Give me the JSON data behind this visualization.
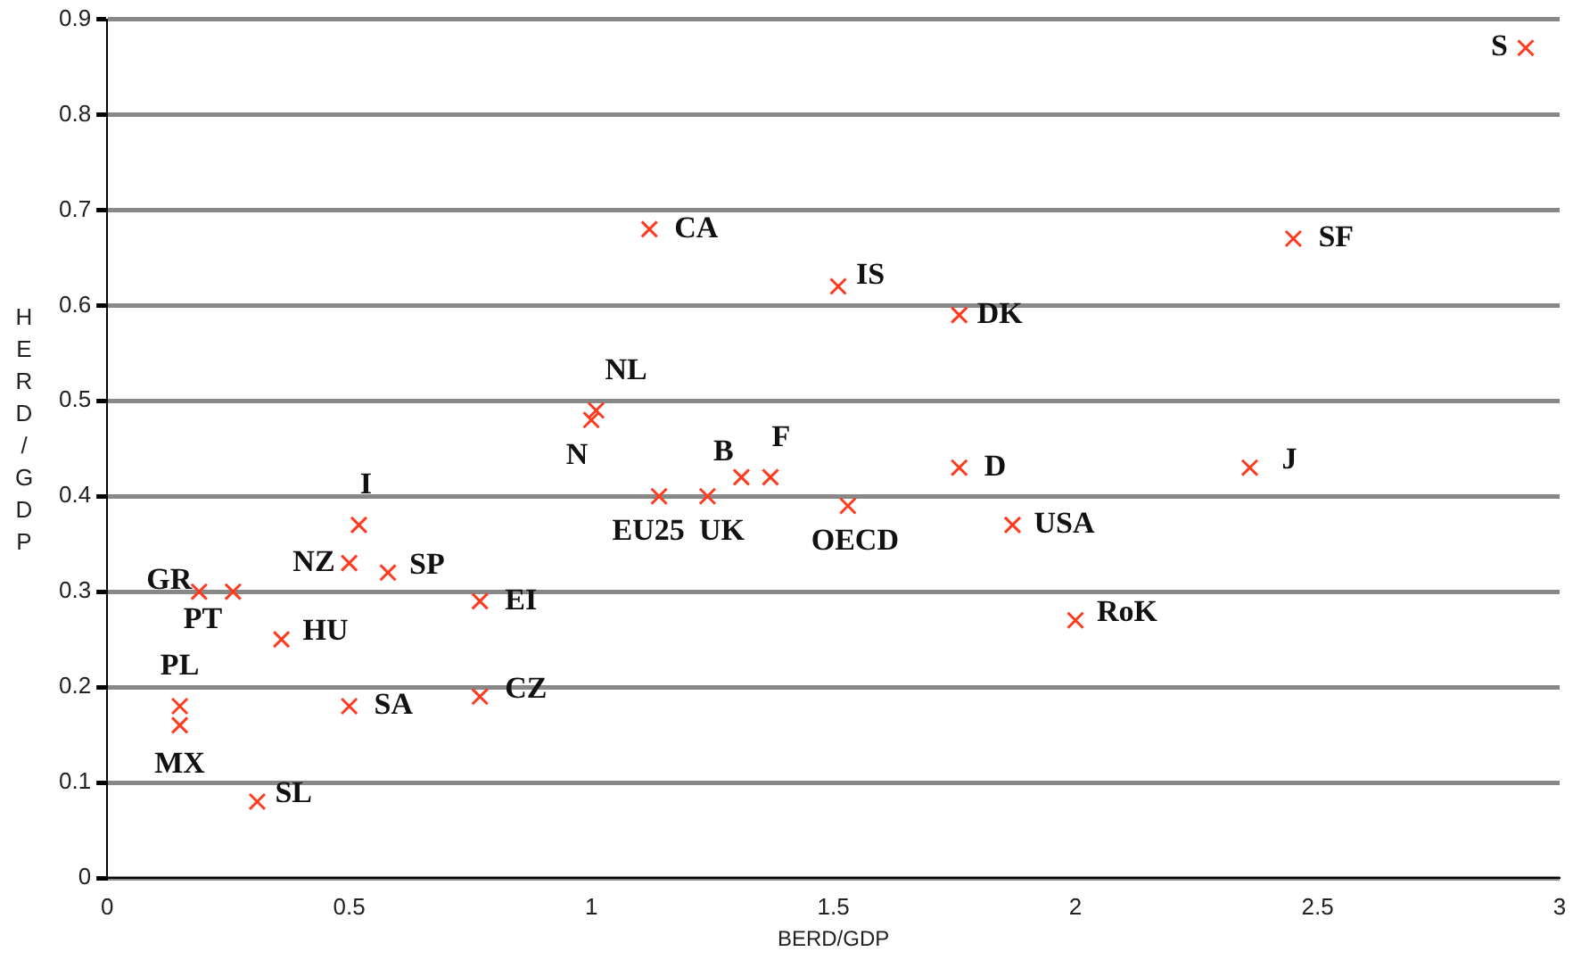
{
  "chart_data": {
    "type": "scatter",
    "xlabel": "BERD/GDP",
    "ylabel": "HERD/GDP",
    "x": [
      2.93,
      2.45,
      1.12,
      1.51,
      1.76,
      1.01,
      1.0,
      1.31,
      1.37,
      1.14,
      1.24,
      1.53,
      1.76,
      2.36,
      1.87,
      2.0,
      0.52,
      0.5,
      0.58,
      0.19,
      0.26,
      0.36,
      0.77,
      0.77,
      0.5,
      0.15,
      0.15,
      0.31
    ],
    "values": [
      0.87,
      0.67,
      0.68,
      0.62,
      0.59,
      0.49,
      0.48,
      0.42,
      0.42,
      0.4,
      0.4,
      0.39,
      0.43,
      0.43,
      0.37,
      0.27,
      0.37,
      0.33,
      0.32,
      0.3,
      0.3,
      0.25,
      0.29,
      0.19,
      0.18,
      0.18,
      0.16,
      0.08
    ],
    "color": "#ff3b1f",
    "marker": "cross",
    "xlim": [
      0,
      3
    ],
    "xticks": [
      0,
      0.5,
      1,
      1.5,
      2,
      2.5,
      3
    ],
    "ylim": [
      0,
      0.9
    ],
    "yticks": [
      0,
      0.1,
      0.2,
      0.3,
      0.4,
      0.5,
      0.6,
      0.7,
      0.8,
      0.9
    ],
    "grid": "y",
    "annotations": [
      {
        "text": "S",
        "x": 2.93,
        "y": 0.87
      },
      {
        "text": "SF",
        "x": 2.45,
        "y": 0.67
      },
      {
        "text": "CA",
        "x": 1.12,
        "y": 0.68
      },
      {
        "text": "IS",
        "x": 1.51,
        "y": 0.62
      },
      {
        "text": "DK",
        "x": 1.76,
        "y": 0.59
      },
      {
        "text": "NL",
        "x": 1.01,
        "y": 0.49
      },
      {
        "text": "N",
        "x": 1.0,
        "y": 0.48
      },
      {
        "text": "B",
        "x": 1.31,
        "y": 0.42
      },
      {
        "text": "F",
        "x": 1.37,
        "y": 0.42
      },
      {
        "text": "EU25",
        "x": 1.14,
        "y": 0.4
      },
      {
        "text": "UK",
        "x": 1.24,
        "y": 0.4
      },
      {
        "text": "OECD",
        "x": 1.53,
        "y": 0.39
      },
      {
        "text": "D",
        "x": 1.76,
        "y": 0.43
      },
      {
        "text": "J",
        "x": 2.36,
        "y": 0.43
      },
      {
        "text": "USA",
        "x": 1.87,
        "y": 0.37
      },
      {
        "text": "RoK",
        "x": 2.0,
        "y": 0.27
      },
      {
        "text": "I",
        "x": 0.52,
        "y": 0.37
      },
      {
        "text": "NZ",
        "x": 0.5,
        "y": 0.33
      },
      {
        "text": "SP",
        "x": 0.58,
        "y": 0.32
      },
      {
        "text": "GR",
        "x": 0.19,
        "y": 0.3
      },
      {
        "text": "PT",
        "x": 0.26,
        "y": 0.3
      },
      {
        "text": "HU",
        "x": 0.36,
        "y": 0.25
      },
      {
        "text": "EI",
        "x": 0.77,
        "y": 0.29
      },
      {
        "text": "CZ",
        "x": 0.77,
        "y": 0.19
      },
      {
        "text": "SA",
        "x": 0.5,
        "y": 0.18
      },
      {
        "text": "PL",
        "x": 0.15,
        "y": 0.18
      },
      {
        "text": "MX",
        "x": 0.15,
        "y": 0.16
      },
      {
        "text": "SL",
        "x": 0.31,
        "y": 0.08
      }
    ]
  }
}
